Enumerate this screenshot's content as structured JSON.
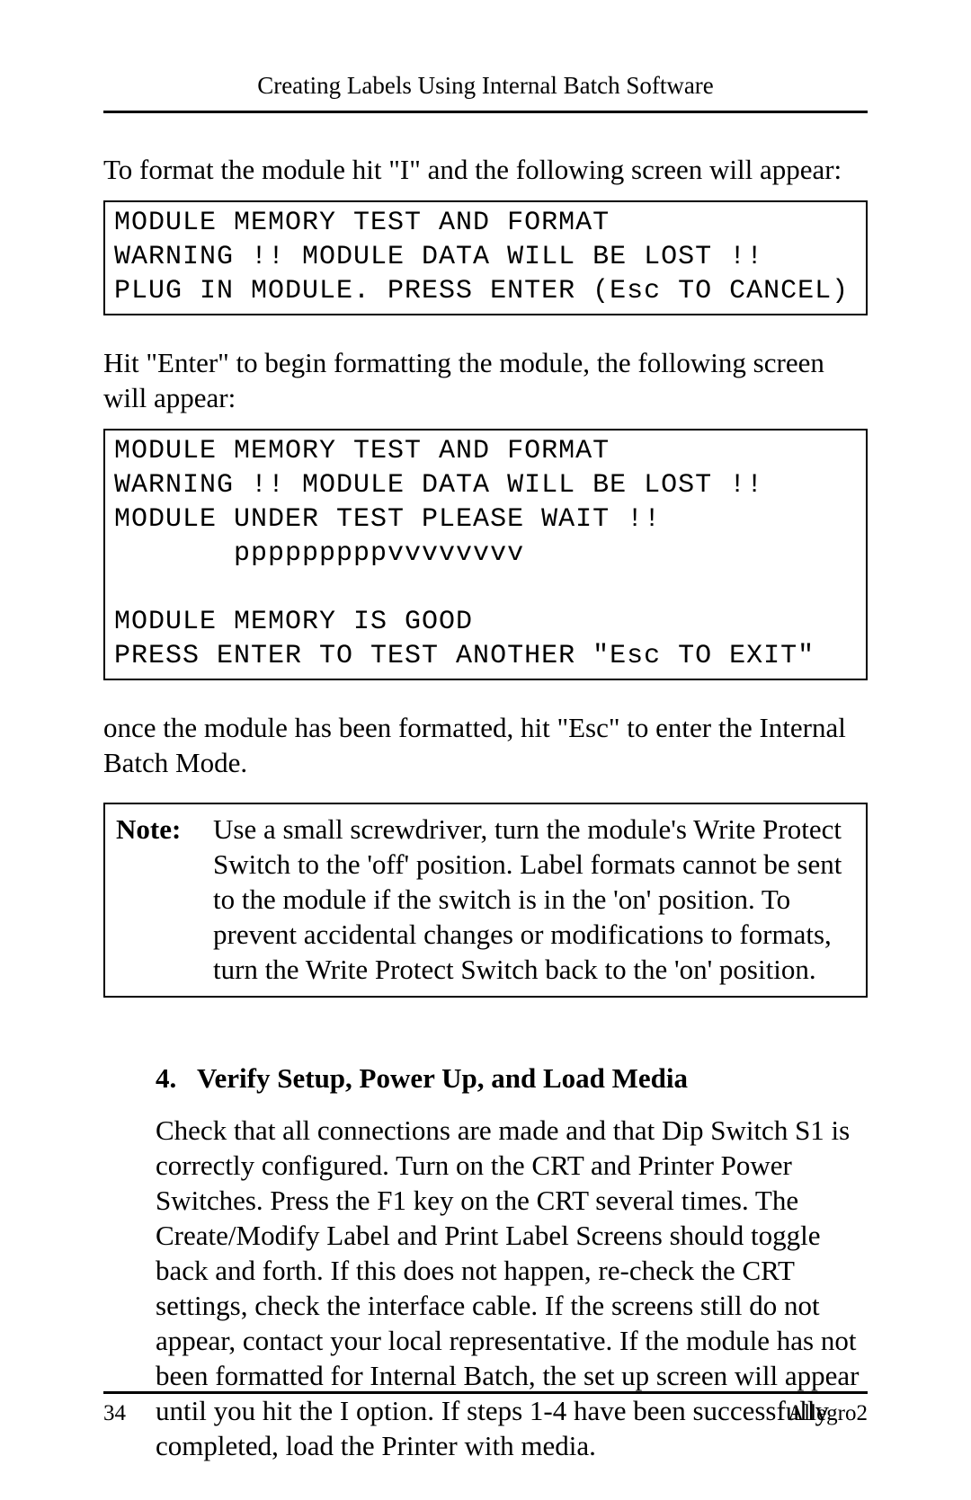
{
  "header": {
    "running_head": "Creating Labels Using Internal Batch Software"
  },
  "para1": "To format the module hit \"I\" and the following screen will appear:",
  "code1": "MODULE MEMORY TEST AND FORMAT\nWARNING !! MODULE DATA WILL BE LOST !!\nPLUG IN MODULE. PRESS ENTER (Esc TO CANCEL)",
  "para2": "Hit \"Enter\" to begin formatting the module,  the following screen will appear:",
  "code2": "MODULE MEMORY TEST AND FORMAT\nWARNING !! MODULE DATA WILL BE LOST !!\nMODULE UNDER TEST PLEASE WAIT !!\n       pppppppppvvvvvvvv\n\nMODULE MEMORY IS GOOD\nPRESS ENTER TO TEST ANOTHER \"Esc TO EXIT\"",
  "para3": "once the module has been formatted, hit \"Esc\" to enter the Internal Batch Mode.",
  "note": {
    "label": "Note:",
    "text": "Use a small screwdriver,  turn the module's Write Protect Switch to the 'off' position. Label formats cannot be sent to the module if the switch is in the 'on' position. To prevent accidental changes or modifications to formats, turn the Write Protect Switch back to the 'on' position."
  },
  "section": {
    "number": "4.",
    "title": "Verify Setup, Power Up, and Load Media",
    "body": "Check that all connections are made and that Dip Switch S1 is correctly configured. Turn on the CRT and Printer Power Switches. Press the F1 key on the CRT several times. The Create/Modify Label and Print Label Screens should toggle back and forth. If this does not happen, re-check the CRT settings, check the interface cable. If the screens still do not appear, contact your  local representative. If the module has not been formatted for Internal Batch, the set up screen will appear until you hit the I option. If steps 1-4 have been successfully completed, load the Printer with media."
  },
  "footer": {
    "page_number": "34",
    "doc_name": "Allegro2"
  },
  "colors": {
    "text": "#000000",
    "background": "#ffffff",
    "rule": "#000000"
  },
  "fonts": {
    "body_family": "Times New Roman",
    "mono_family": "Courier New",
    "body_size_pt": 23,
    "mono_size_pt": 22,
    "header_size_pt": 20,
    "footer_size_pt": 19
  }
}
